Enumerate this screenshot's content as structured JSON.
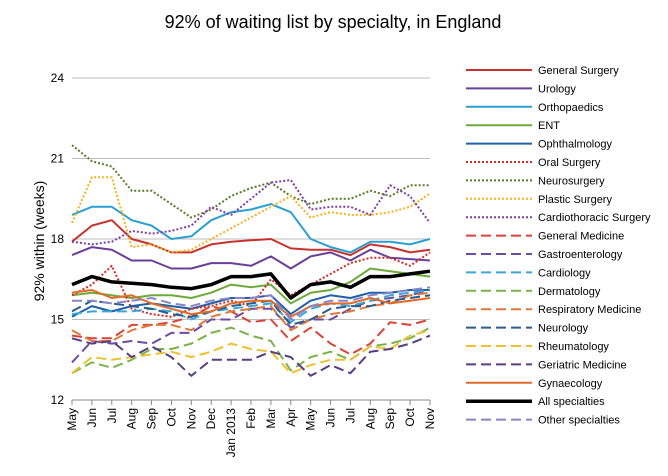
{
  "chart_data": {
    "type": "line",
    "title": "92% of waiting list by specialty, in England",
    "ylabel": "92% within (weeks)",
    "xlabel": "",
    "ylim": [
      12,
      24
    ],
    "yticks": [
      "12",
      "15",
      "18",
      "21",
      "24"
    ],
    "grid": "horizontal",
    "legend": "right",
    "x": [
      "May",
      "Jun",
      "Jul",
      "Aug",
      "Sep",
      "Oct",
      "Nov",
      "Dec",
      "Jan 2013",
      "Feb",
      "Mar",
      "Apr",
      "May",
      "Jun",
      "Jul",
      "Aug",
      "Sep",
      "Oct",
      "Nov"
    ],
    "series": [
      {
        "name": "General Surgery",
        "color": "#c8322e",
        "dash": "solid",
        "width": 2,
        "values": [
          17.9,
          18.5,
          18.7,
          18.0,
          17.8,
          17.5,
          17.5,
          17.8,
          17.9,
          17.95,
          18.0,
          17.65,
          17.6,
          17.6,
          17.4,
          17.8,
          17.7,
          17.5,
          17.6
        ]
      },
      {
        "name": "Urology",
        "color": "#6a3f9a",
        "dash": "solid",
        "width": 2,
        "values": [
          17.4,
          17.7,
          17.6,
          17.2,
          17.2,
          16.9,
          16.9,
          17.1,
          17.1,
          17.0,
          17.35,
          16.9,
          17.35,
          17.5,
          17.2,
          17.6,
          17.3,
          17.25,
          17.2
        ]
      },
      {
        "name": "Orthopaedics",
        "color": "#2aa0d0",
        "dash": "solid",
        "width": 2,
        "values": [
          18.9,
          19.2,
          19.2,
          18.7,
          18.5,
          18.0,
          18.1,
          18.7,
          19.0,
          19.1,
          19.3,
          19.0,
          18.0,
          17.7,
          17.5,
          17.9,
          17.9,
          17.8,
          18.0
        ]
      },
      {
        "name": "ENT",
        "color": "#6daa3a",
        "dash": "solid",
        "width": 2,
        "values": [
          15.9,
          16.0,
          15.9,
          15.8,
          15.9,
          15.9,
          15.8,
          16.0,
          16.3,
          16.2,
          16.3,
          15.6,
          16.0,
          16.1,
          16.4,
          16.9,
          16.8,
          16.7,
          16.6
        ]
      },
      {
        "name": "Ophthalmology",
        "color": "#1f5fa6",
        "dash": "solid",
        "width": 2,
        "values": [
          15.1,
          15.5,
          15.3,
          15.5,
          15.6,
          15.5,
          15.4,
          15.6,
          15.8,
          15.8,
          15.9,
          15.2,
          15.7,
          15.9,
          15.8,
          16.0,
          16.0,
          16.1,
          16.1
        ]
      },
      {
        "name": "Oral Surgery",
        "color": "#d32a22",
        "dash": "2,2",
        "width": 2,
        "values": [
          15.9,
          16.3,
          17.0,
          15.4,
          15.2,
          15.1,
          15.4,
          15.5,
          15.7,
          15.5,
          16.5,
          15.9,
          16.3,
          16.7,
          17.1,
          17.3,
          17.3,
          17.0,
          17.5
        ]
      },
      {
        "name": "Neurosurgery",
        "color": "#5a7a2a",
        "dash": "2,2",
        "width": 2,
        "values": [
          21.5,
          20.9,
          20.7,
          19.8,
          19.8,
          19.3,
          18.8,
          19.1,
          19.6,
          19.9,
          20.1,
          19.6,
          19.3,
          19.5,
          19.5,
          19.8,
          19.6,
          20.0,
          20.0
        ]
      },
      {
        "name": "Plastic Surgery",
        "color": "#f4b21c",
        "dash": "2,2",
        "width": 2,
        "values": [
          18.6,
          20.3,
          20.3,
          17.7,
          17.8,
          17.5,
          17.6,
          18.0,
          18.4,
          18.8,
          19.2,
          19.6,
          18.8,
          19.0,
          18.9,
          18.9,
          19.0,
          19.2,
          19.7
        ]
      },
      {
        "name": "Cardiothoracic Surgery",
        "color": "#7d3fa0",
        "dash": "2,2",
        "width": 2,
        "values": [
          17.9,
          17.8,
          17.9,
          18.3,
          18.2,
          18.3,
          18.5,
          19.2,
          18.9,
          19.5,
          20.1,
          20.2,
          19.1,
          19.2,
          19.2,
          18.9,
          20.0,
          19.6,
          18.6
        ]
      },
      {
        "name": "General Medicine",
        "color": "#d94436",
        "dash": "10,5",
        "width": 2,
        "values": [
          14.4,
          14.3,
          14.3,
          14.8,
          14.8,
          14.9,
          15.1,
          15.5,
          15.3,
          14.9,
          15.0,
          14.2,
          14.7,
          14.1,
          13.7,
          14.1,
          14.9,
          14.8,
          15.0
        ]
      },
      {
        "name": "Gastroenterology",
        "color": "#6c4ba0",
        "dash": "10,5",
        "width": 2,
        "values": [
          13.4,
          14.2,
          14.1,
          14.2,
          14.1,
          14.5,
          14.5,
          15.0,
          15.0,
          15.4,
          15.4,
          14.7,
          15.0,
          15.0,
          15.4,
          15.7,
          15.8,
          15.9,
          16.1
        ]
      },
      {
        "name": "Cardiology",
        "color": "#3aa8d8",
        "dash": "10,5",
        "width": 2,
        "values": [
          15.2,
          15.3,
          15.3,
          15.3,
          15.4,
          15.3,
          15.0,
          15.3,
          15.4,
          15.5,
          15.6,
          14.9,
          15.4,
          15.6,
          15.5,
          15.7,
          15.9,
          16.0,
          16.1
        ]
      },
      {
        "name": "Dermatology",
        "color": "#7bb24a",
        "dash": "10,5",
        "width": 2,
        "values": [
          13.0,
          13.4,
          13.2,
          13.5,
          13.9,
          13.9,
          14.1,
          14.5,
          14.7,
          14.4,
          14.2,
          13.1,
          13.6,
          13.8,
          13.5,
          14.0,
          14.1,
          14.3,
          14.7
        ]
      },
      {
        "name": "Respiratory Medicine",
        "color": "#e0783a",
        "dash": "10,5",
        "width": 2,
        "values": [
          14.6,
          14.2,
          14.2,
          14.6,
          14.8,
          14.8,
          14.6,
          15.1,
          15.3,
          15.4,
          15.5,
          14.6,
          15.0,
          15.2,
          15.3,
          15.5,
          15.6,
          15.9,
          16.0
        ]
      },
      {
        "name": "Neurology",
        "color": "#2a5c8c",
        "dash": "10,5",
        "width": 2,
        "values": [
          15.3,
          15.7,
          15.6,
          15.5,
          15.4,
          15.2,
          15.1,
          15.3,
          15.5,
          15.6,
          15.7,
          14.8,
          15.0,
          15.4,
          15.5,
          15.5,
          15.7,
          15.8,
          15.9
        ]
      },
      {
        "name": "Rheumatology",
        "color": "#f0c030",
        "dash": "10,5",
        "width": 2,
        "values": [
          13.0,
          13.6,
          13.5,
          13.6,
          13.7,
          13.8,
          13.6,
          13.8,
          14.1,
          13.9,
          13.8,
          13.0,
          13.3,
          13.5,
          13.5,
          14.0,
          13.9,
          14.4,
          14.6
        ]
      },
      {
        "name": "Geriatric Medicine",
        "color": "#5a3c80",
        "dash": "10,5",
        "width": 2,
        "values": [
          14.3,
          14.1,
          14.2,
          13.6,
          14.0,
          13.6,
          12.9,
          13.5,
          13.5,
          13.5,
          13.8,
          13.6,
          12.9,
          13.3,
          13.0,
          13.8,
          13.9,
          14.1,
          14.4
        ]
      },
      {
        "name": "Gynaecology",
        "color": "#e06a2a",
        "dash": "solid",
        "width": 2,
        "values": [
          16.0,
          16.1,
          15.8,
          15.9,
          15.6,
          15.4,
          15.2,
          15.3,
          15.6,
          15.7,
          15.7,
          15.1,
          15.5,
          15.6,
          15.6,
          15.8,
          15.6,
          15.7,
          15.8
        ]
      },
      {
        "name": "All specialties",
        "color": "#000000",
        "dash": "solid",
        "width": 3.5,
        "values": [
          16.3,
          16.6,
          16.4,
          16.35,
          16.3,
          16.2,
          16.15,
          16.3,
          16.6,
          16.6,
          16.7,
          15.8,
          16.3,
          16.4,
          16.2,
          16.6,
          16.6,
          16.7,
          16.8
        ]
      },
      {
        "name": "Other specialties",
        "color": "#8a84c8",
        "dash": "10,5",
        "width": 2,
        "values": [
          15.7,
          15.7,
          15.6,
          15.7,
          15.8,
          15.6,
          15.5,
          15.7,
          15.8,
          15.8,
          15.9,
          15.0,
          15.5,
          15.7,
          15.7,
          15.9,
          16.0,
          16.1,
          16.2
        ]
      }
    ]
  }
}
